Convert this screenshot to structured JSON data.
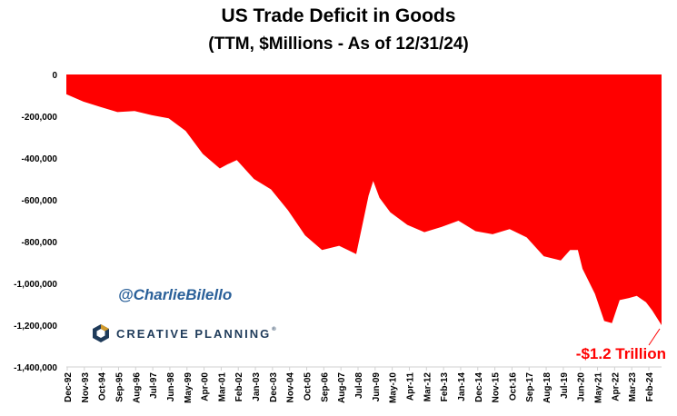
{
  "title": "US Trade Deficit in Goods",
  "subtitle": "(TTM, $Millions - As of 12/31/24)",
  "handle": "@CharlieBilello",
  "brand": "CREATIVE PLANNING",
  "brand_tm": "®",
  "annotation": "-$1.2 Trillion",
  "colors": {
    "area": "#ff0000",
    "annotation": "#ff0000",
    "handle": "#2a6099",
    "brand": "#1f3b5a"
  },
  "chart_data": {
    "type": "area",
    "title": "US Trade Deficit in Goods",
    "subtitle": "(TTM, $Millions - As of 12/31/24)",
    "xlabel": "",
    "ylabel": "",
    "ylim": [
      -1400000,
      0
    ],
    "yticks": [
      0,
      -200000,
      -400000,
      -600000,
      -800000,
      -1000000,
      -1200000,
      -1400000
    ],
    "ytick_labels": [
      "0",
      "-200,000",
      "-400,000",
      "-600,000",
      "-800,000",
      "-1,000,000",
      "-1,200,000",
      "-1,400,000"
    ],
    "xtick_labels": [
      "Dec-92",
      "Nov-93",
      "Oct-94",
      "Sep-95",
      "Aug-96",
      "Jul-97",
      "Jun-98",
      "May-99",
      "Apr-00",
      "Mar-01",
      "Feb-02",
      "Jan-03",
      "Dec-03",
      "Nov-04",
      "Oct-05",
      "Sep-06",
      "Aug-07",
      "Jul-08",
      "Jun-09",
      "May-10",
      "Apr-11",
      "Mar-12",
      "Feb-13",
      "Jan-14",
      "Dec-14",
      "Nov-15",
      "Oct-16",
      "Sep-17",
      "Aug-18",
      "Jul-19",
      "Jun-20",
      "May-21",
      "Apr-22",
      "Mar-23",
      "Feb-24"
    ],
    "x": [
      "1992-12",
      "1993-11",
      "1994-10",
      "1995-09",
      "1996-08",
      "1997-07",
      "1998-06",
      "1999-05",
      "2000-04",
      "2001-03",
      "2001-08",
      "2002-02",
      "2003-01",
      "2003-12",
      "2004-11",
      "2005-10",
      "2006-09",
      "2007-08",
      "2008-07",
      "2009-03",
      "2009-06",
      "2009-10",
      "2010-05",
      "2011-04",
      "2012-03",
      "2013-02",
      "2014-01",
      "2014-12",
      "2015-11",
      "2016-10",
      "2017-09",
      "2018-08",
      "2019-07",
      "2020-01",
      "2020-06",
      "2020-09",
      "2021-05",
      "2021-11",
      "2022-04",
      "2022-09",
      "2023-03",
      "2023-08",
      "2024-02",
      "2024-06",
      "2024-12"
    ],
    "series": [
      {
        "values": [
          -95000,
          -130000,
          -155000,
          -180000,
          -175000,
          -195000,
          -210000,
          -270000,
          -380000,
          -450000,
          -430000,
          -410000,
          -500000,
          -550000,
          -650000,
          -770000,
          -840000,
          -820000,
          -860000,
          -580000,
          -510000,
          -590000,
          -660000,
          -720000,
          -755000,
          -730000,
          -700000,
          -750000,
          -765000,
          -740000,
          -780000,
          -870000,
          -890000,
          -840000,
          -840000,
          -930000,
          -1050000,
          -1180000,
          -1190000,
          -1080000,
          -1070000,
          -1060000,
          -1090000,
          -1130000,
          -1200000
        ]
      }
    ],
    "grid": false,
    "legend": "none"
  }
}
